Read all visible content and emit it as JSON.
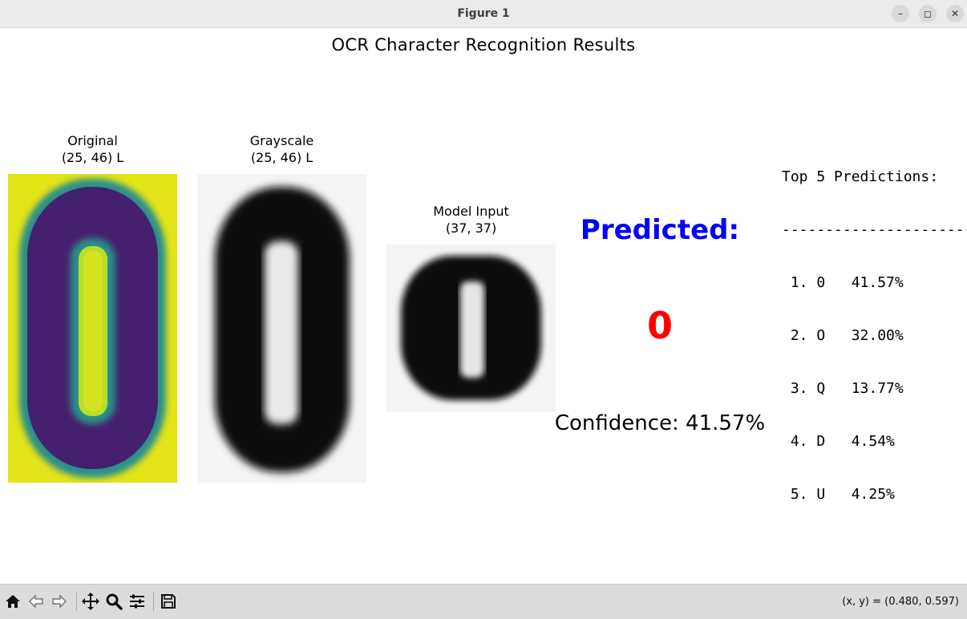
{
  "window": {
    "title": "Figure 1",
    "buttons": {
      "minimize": "–",
      "maximize": "◻",
      "close": "✕"
    }
  },
  "figure": {
    "suptitle": "OCR Character Recognition Results",
    "panels": {
      "original": {
        "title": "Original",
        "subtitle": "(25, 46) L",
        "colormap": "viridis"
      },
      "grayscale": {
        "title": "Grayscale",
        "subtitle": "(25, 46) L",
        "colormap": "gray"
      },
      "model_input": {
        "title": "Model Input",
        "subtitle": "(37, 37)",
        "colormap": "gray"
      }
    },
    "prediction": {
      "label": "Predicted:",
      "character": "0",
      "confidence_text": "Confidence: 41.57%",
      "label_color": "#0000ff",
      "character_color": "#ff0000"
    },
    "top5": {
      "header": "Top 5 Predictions:",
      "divider": "-------------------------",
      "rows": [
        " 1. 0   41.57%",
        " 2. O   32.00%",
        " 3. Q   13.77%",
        " 4. D   4.54%",
        " 5. U   4.25%"
      ]
    }
  },
  "toolbar": {
    "tools": [
      "home-icon",
      "back-icon",
      "forward-icon",
      "pan-icon",
      "zoom-icon",
      "configure-subplots-icon",
      "save-icon"
    ],
    "coords": "(x, y) = (0.480, 0.597)"
  }
}
